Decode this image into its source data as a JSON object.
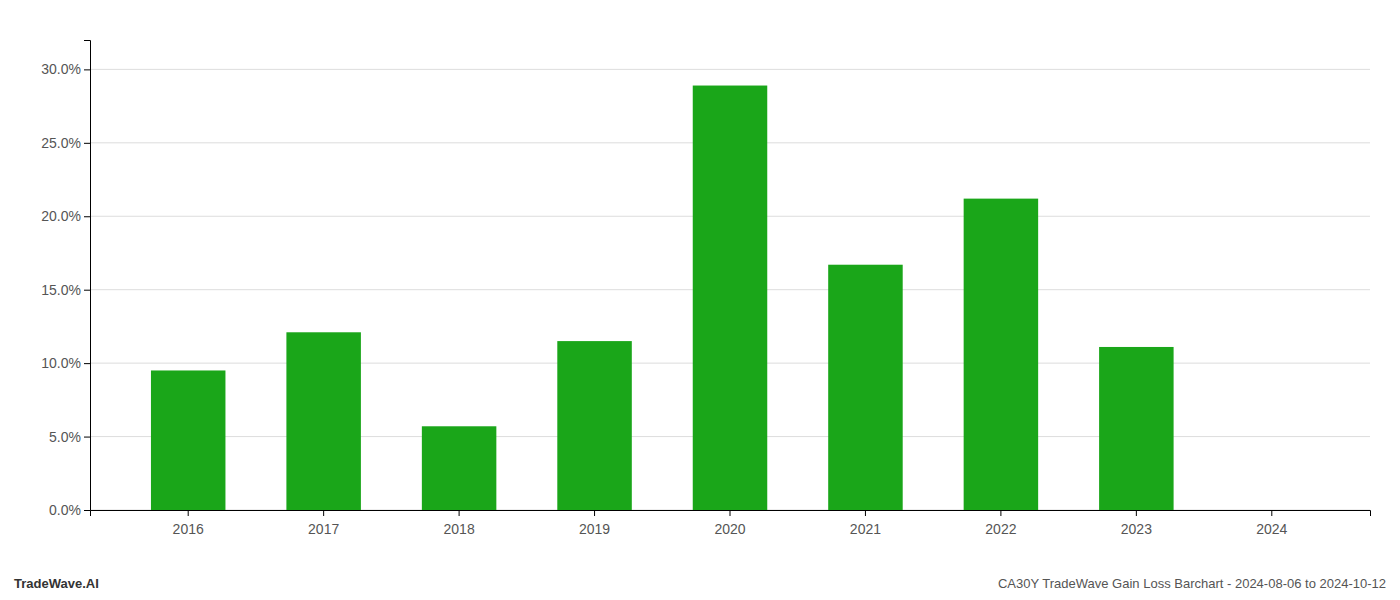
{
  "chart_data": {
    "type": "bar",
    "categories": [
      "2016",
      "2017",
      "2018",
      "2019",
      "2020",
      "2021",
      "2022",
      "2023",
      "2024"
    ],
    "values": [
      0.095,
      0.121,
      0.057,
      0.115,
      0.289,
      0.167,
      0.212,
      0.111,
      0.0
    ],
    "color": "#1aa619",
    "ylim": [
      0,
      0.32
    ],
    "yticks": [
      {
        "value": 0.0,
        "label": "0.0%"
      },
      {
        "value": 0.05,
        "label": "5.0%"
      },
      {
        "value": 0.1,
        "label": "10.0%"
      },
      {
        "value": 0.15,
        "label": "15.0%"
      },
      {
        "value": 0.2,
        "label": "20.0%"
      },
      {
        "value": 0.25,
        "label": "25.0%"
      },
      {
        "value": 0.3,
        "label": "30.0%"
      }
    ],
    "grid": true,
    "annotations": [
      "TradeWave.AI",
      "CA30Y TradeWave Gain Loss Barchart - 2024-08-06 to 2024-10-12"
    ]
  }
}
